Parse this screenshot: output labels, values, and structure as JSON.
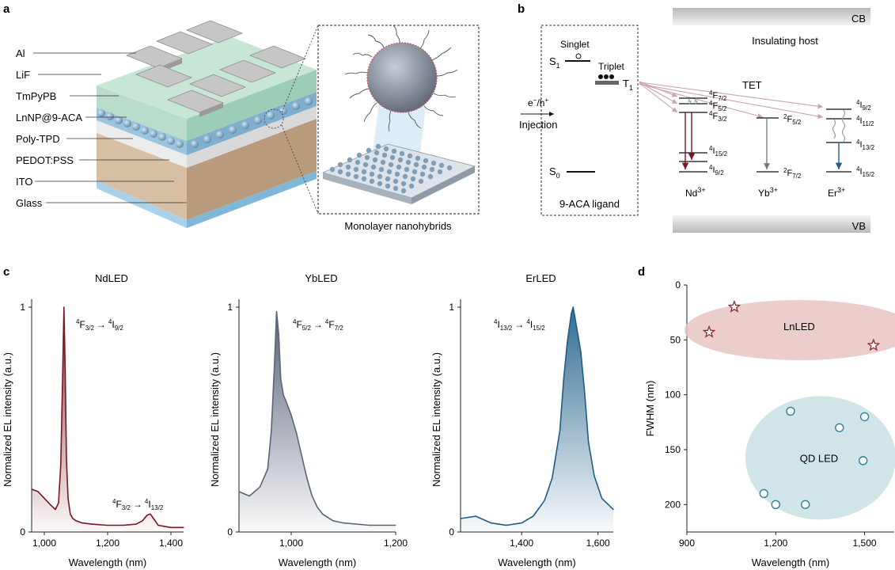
{
  "panel_a": {
    "label": "a",
    "layers": [
      "Al",
      "LiF",
      "TmPyPB",
      "LnNP@9-ACA",
      "Poly-TPD",
      "PEDOT:PSS",
      "ITO",
      "Glass"
    ],
    "inset_caption": "Monolayer nanohybrids"
  },
  "panel_b": {
    "label": "b",
    "cb": "CB",
    "vb": "VB",
    "host": "Insulating host",
    "singlet": "Singlet",
    "triplet": "Triplet",
    "s1": "S",
    "s1_sub": "1",
    "t1": "T",
    "t1_sub": "1",
    "s0": "S",
    "s0_sub": "0",
    "injection_top": "e",
    "injection_mid": "/h",
    "injection": "Injection",
    "ligand": "9-ACA ligand",
    "tet": "TET",
    "ions": {
      "nd": {
        "el": "Nd",
        "ch": "3+"
      },
      "yb": {
        "el": "Yb",
        "ch": "3+"
      },
      "er": {
        "el": "Er",
        "ch": "3+"
      }
    },
    "nd_levels": [
      {
        "sup": "4",
        "sym": "F",
        "sub": "7/2"
      },
      {
        "sup": "4",
        "sym": "F",
        "sub": "5/2"
      },
      {
        "sup": "4",
        "sym": "F",
        "sub": "3/2"
      },
      {
        "sup": "4",
        "sym": "I",
        "sub": "15/2"
      },
      {
        "sup": "4",
        "sym": "I",
        "sub": "9/2"
      }
    ],
    "yb_levels": [
      {
        "sup": "2",
        "sym": "F",
        "sub": "5/2"
      },
      {
        "sup": "2",
        "sym": "F",
        "sub": "7/2"
      }
    ],
    "er_levels": [
      {
        "sup": "4",
        "sym": "I",
        "sub": "9/2"
      },
      {
        "sup": "4",
        "sym": "I",
        "sub": "11/2"
      },
      {
        "sup": "4",
        "sym": "I",
        "sub": "13/2"
      },
      {
        "sup": "4",
        "sym": "I",
        "sub": "15/2"
      }
    ]
  },
  "panel_c": {
    "label": "c",
    "nd_ann2": {
      "a_sup": "4",
      "a": "F",
      "a_sub": "3/2",
      "arrow": "→",
      "b_sup": "4",
      "b": "I",
      "b_sub": "13/2"
    }
  },
  "panel_d": {
    "label": "d"
  },
  "chart_data": [
    {
      "type": "line",
      "title": "NdLED",
      "xlabel": "Wavelength (nm)",
      "ylabel": "Normalized EL intensity (a.u.)",
      "xlim": [
        960,
        1440
      ],
      "ylim": [
        0,
        1
      ],
      "xticks": [
        1000,
        1200,
        1400
      ],
      "xtick_labels": [
        "1,000",
        "1,200",
        "1,400"
      ],
      "yticks": [
        0,
        1
      ],
      "ytick_labels": [
        "0",
        "1"
      ],
      "color": "#7a1522",
      "annotation": {
        "a_sup": "4",
        "a": "F",
        "a_sub": "3/2",
        "arrow": "→",
        "b_sup": "4",
        "b": "I",
        "b_sub": "9/2"
      },
      "series": [
        {
          "x": [
            960,
            980,
            1000,
            1020,
            1035,
            1045,
            1052,
            1058,
            1062,
            1066,
            1070,
            1075,
            1082,
            1090,
            1100,
            1120,
            1150,
            1200,
            1250,
            1290,
            1310,
            1325,
            1335,
            1345,
            1360,
            1380,
            1400,
            1440
          ],
          "y": [
            0.19,
            0.18,
            0.15,
            0.12,
            0.1,
            0.13,
            0.3,
            0.7,
            1.0,
            0.72,
            0.32,
            0.15,
            0.08,
            0.06,
            0.05,
            0.04,
            0.035,
            0.03,
            0.03,
            0.035,
            0.05,
            0.075,
            0.08,
            0.06,
            0.03,
            0.025,
            0.02,
            0.02
          ]
        }
      ]
    },
    {
      "type": "line",
      "title": "YbLED",
      "xlabel": "Wavelength (nm)",
      "ylabel": "Normalized EL intensity (a.u.)",
      "xlim": [
        900,
        1200
      ],
      "ylim": [
        0,
        1
      ],
      "xticks": [
        1000,
        1200
      ],
      "xtick_labels": [
        "1,000",
        "1,200"
      ],
      "yticks": [
        0,
        1
      ],
      "ytick_labels": [
        "0",
        "1"
      ],
      "color": "#5b6478",
      "annotation": {
        "a_sup": "4",
        "a": "F",
        "a_sub": "5/2",
        "arrow": "→",
        "b_sup": "4",
        "b": "F",
        "b_sub": "7/2"
      },
      "series": [
        {
          "x": [
            900,
            920,
            940,
            955,
            962,
            968,
            972,
            976,
            980,
            985,
            992,
            1000,
            1010,
            1020,
            1030,
            1040,
            1050,
            1060,
            1080,
            1100,
            1150,
            1200
          ],
          "y": [
            0.18,
            0.16,
            0.2,
            0.28,
            0.45,
            0.75,
            0.98,
            0.88,
            0.68,
            0.61,
            0.57,
            0.52,
            0.44,
            0.34,
            0.24,
            0.16,
            0.11,
            0.08,
            0.05,
            0.04,
            0.03,
            0.03
          ]
        }
      ]
    },
    {
      "type": "line",
      "title": "ErLED",
      "xlabel": "Wavelength (nm)",
      "ylabel": "Normalized EL intensity (a.u.)",
      "xlim": [
        1240,
        1640
      ],
      "ylim": [
        0,
        1
      ],
      "xticks": [
        1400,
        1600
      ],
      "xtick_labels": [
        "1,400",
        "1,600"
      ],
      "yticks": [
        0,
        1
      ],
      "ytick_labels": [
        "0",
        "1"
      ],
      "color": "#1e5d86",
      "annotation": {
        "a_sup": "4",
        "a": "I",
        "a_sub": "13/2",
        "arrow": "→",
        "b_sup": "4",
        "b": "I",
        "b_sub": "15/2"
      },
      "series": [
        {
          "x": [
            1240,
            1280,
            1320,
            1360,
            1400,
            1430,
            1460,
            1480,
            1500,
            1510,
            1520,
            1530,
            1535,
            1545,
            1555,
            1565,
            1575,
            1590,
            1610,
            1640
          ],
          "y": [
            0.06,
            0.07,
            0.04,
            0.03,
            0.04,
            0.07,
            0.14,
            0.24,
            0.45,
            0.68,
            0.85,
            0.97,
            1.0,
            0.9,
            0.8,
            0.62,
            0.4,
            0.25,
            0.15,
            0.1
          ]
        }
      ]
    },
    {
      "type": "scatter",
      "xlabel": "Wavelength (nm)",
      "ylabel": "FWHM (nm)",
      "xlim": [
        900,
        1600
      ],
      "ylim": [
        225,
        0
      ],
      "xticks": [
        900,
        1200,
        1500
      ],
      "xtick_labels": [
        "900",
        "1,200",
        "1,500"
      ],
      "yticks": [
        0,
        50,
        100,
        150,
        200
      ],
      "ytick_labels": [
        "0",
        "50",
        "100",
        "150",
        "200"
      ],
      "groups": [
        {
          "name": "LnLED",
          "marker": "star",
          "color": "#8c2a35",
          "fill": "#e8c5c2",
          "points": [
            [
              975,
              43
            ],
            [
              1060,
              20
            ],
            [
              1530,
              55
            ]
          ]
        },
        {
          "name": "QD LED",
          "marker": "circle",
          "color": "#2f7f9a",
          "fill": "#c9dfe4",
          "points": [
            [
              1250,
              115
            ],
            [
              1500,
              120
            ],
            [
              1415,
              130
            ],
            [
              1495,
              160
            ],
            [
              1160,
              190
            ],
            [
              1200,
              200
            ],
            [
              1300,
              200
            ]
          ]
        }
      ]
    }
  ]
}
